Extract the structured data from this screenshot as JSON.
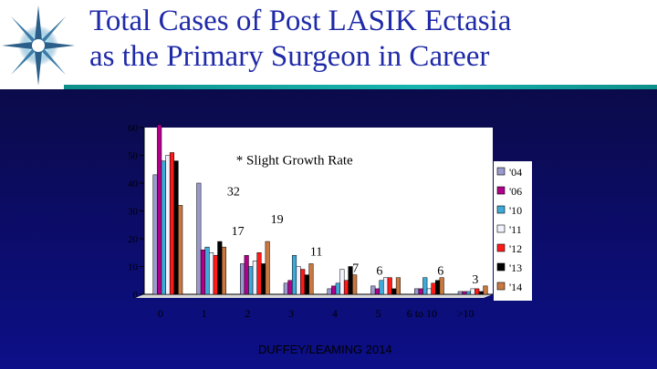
{
  "title_line1": "Total Cases of Post LASIK Ectasia",
  "title_line2": "as the Primary Surgeon in Career",
  "credit": "DUFFEY/LEAMING 2014",
  "chart_data": {
    "type": "bar",
    "title": "",
    "xlabel": "",
    "ylabel": "",
    "ylim": [
      0,
      60
    ],
    "yticks": [
      0,
      10,
      20,
      30,
      40,
      50,
      60
    ],
    "grid": false,
    "legend_position": "right",
    "categories": [
      "0",
      "1",
      "2",
      "3",
      "4",
      "5",
      "6 to 10",
      ">10"
    ],
    "series": [
      {
        "name": "'04",
        "color": "#9a9acf",
        "values": [
          43,
          40,
          11,
          4,
          2,
          3,
          2,
          1
        ]
      },
      {
        "name": "'06",
        "color": "#b2008a",
        "values": [
          61,
          16,
          14,
          5,
          3,
          2,
          2,
          1
        ]
      },
      {
        "name": "'10",
        "color": "#3fa9d8",
        "values": [
          48,
          17,
          10,
          14,
          4,
          5,
          6,
          1
        ]
      },
      {
        "name": "'11",
        "color": "#f2f2ff",
        "values": [
          50,
          15,
          12,
          10,
          9,
          6,
          2,
          2
        ]
      },
      {
        "name": "'12",
        "color": "#ff1a1a",
        "values": [
          51,
          14,
          15,
          9,
          5,
          6,
          4,
          2
        ]
      },
      {
        "name": "'13",
        "color": "#000000",
        "values": [
          48,
          19,
          11,
          7,
          10,
          2,
          5,
          1
        ]
      },
      {
        "name": "'14",
        "color": "#c87840",
        "values": [
          32,
          17,
          19,
          11,
          7,
          6,
          6,
          3
        ]
      }
    ],
    "annotations": [
      {
        "text": "* Slight Growth Rate",
        "category": "2"
      },
      {
        "text": "32",
        "category": "1",
        "value": 32
      },
      {
        "text": "17",
        "category": "2",
        "value": 17
      },
      {
        "text": "19",
        "category": "2",
        "value": 19
      },
      {
        "text": "11",
        "category": "3",
        "value": 11
      },
      {
        "text": "7",
        "category": "4",
        "value": 7
      },
      {
        "text": "6",
        "category": "5",
        "value": 6
      },
      {
        "text": "6",
        "category": "6 to 10",
        "value": 6
      },
      {
        "text": "3",
        "category": ">10",
        "value": 3
      }
    ]
  }
}
